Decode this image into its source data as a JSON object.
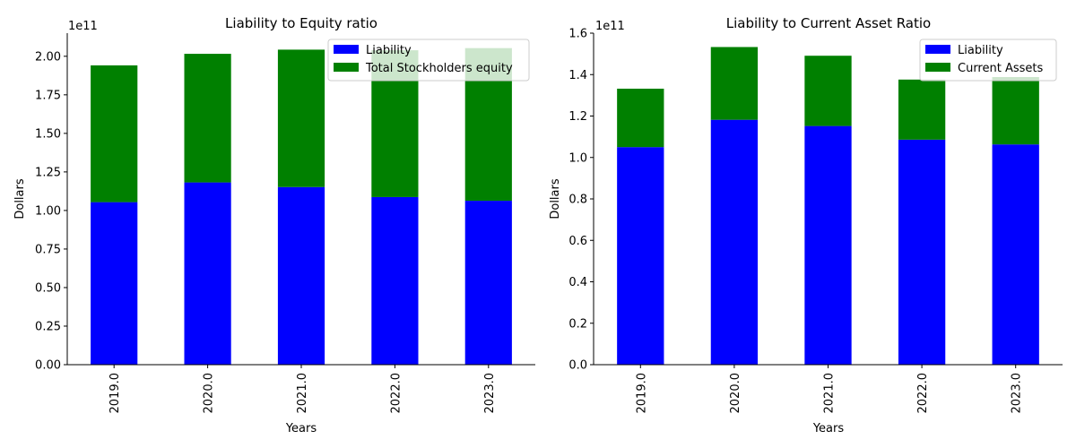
{
  "chart_data": [
    {
      "type": "bar",
      "stacked": true,
      "title": "Liability to Equity ratio",
      "xlabel": "Years",
      "ylabel": "Dollars",
      "offset_text": "1e11",
      "categories": [
        "2019.0",
        "2020.0",
        "2021.0",
        "2022.0",
        "2023.0"
      ],
      "series": [
        {
          "name": "Liability",
          "color": "#0000ff",
          "values": [
            105.4,
            118.2,
            115.2,
            108.7,
            106.3
          ]
        },
        {
          "name": "Total Stockholders equity",
          "color": "#008000",
          "values": [
            88.7,
            83.4,
            89.1,
            95.2,
            99.0
          ]
        }
      ],
      "scale": 1000000000.0,
      "ylim": [
        0,
        215
      ],
      "yticks": [
        0,
        25,
        50,
        75,
        100,
        125,
        150,
        175,
        200
      ],
      "ytick_labels": [
        "0.00",
        "0.25",
        "0.50",
        "0.75",
        "1.00",
        "1.25",
        "1.50",
        "1.75",
        "2.00"
      ],
      "legend": "top-right",
      "grid": false
    },
    {
      "type": "bar",
      "stacked": true,
      "title": "Liability to Current Asset Ratio",
      "xlabel": "Years",
      "ylabel": "Dollars",
      "offset_text": "1e11",
      "categories": [
        "2019.0",
        "2020.0",
        "2021.0",
        "2022.0",
        "2023.0"
      ],
      "series": [
        {
          "name": "Liability",
          "color": "#0000ff",
          "values": [
            105.0,
            118.2,
            115.2,
            108.6,
            106.3
          ]
        },
        {
          "name": "Current Assets",
          "color": "#008000",
          "values": [
            28.2,
            35.1,
            33.9,
            29.0,
            32.5
          ]
        }
      ],
      "scale": 1000000000.0,
      "ylim": [
        0,
        160
      ],
      "yticks": [
        0,
        20,
        40,
        60,
        80,
        100,
        120,
        140,
        160
      ],
      "ytick_labels": [
        "0.0",
        "0.2",
        "0.4",
        "0.6",
        "0.8",
        "1.0",
        "1.2",
        "1.4",
        "1.6"
      ],
      "legend": "top-right",
      "grid": false
    }
  ]
}
